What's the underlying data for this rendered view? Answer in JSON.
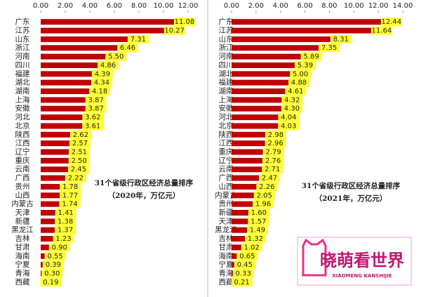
{
  "chart_data": [
    {
      "type": "bar",
      "orientation": "horizontal",
      "title": "31个省级行政区经济总量排序",
      "subtitle": "（2020年，万亿元）",
      "categories": [
        "广东",
        "江苏",
        "山东",
        "浙江",
        "河南",
        "四川",
        "福建",
        "湖北",
        "湖南",
        "上海",
        "安徽",
        "河北",
        "北京",
        "陕西",
        "江西",
        "辽宁",
        "重庆",
        "云南",
        "广西",
        "贵州",
        "山西",
        "内蒙古",
        "天津",
        "新疆",
        "黑龙江",
        "吉林",
        "甘肃",
        "海南",
        "宁夏",
        "青海",
        "西藏"
      ],
      "values": [
        11.08,
        10.27,
        7.31,
        6.46,
        5.5,
        4.86,
        4.39,
        4.34,
        4.18,
        3.87,
        3.87,
        3.62,
        3.61,
        2.62,
        2.57,
        2.51,
        2.5,
        2.45,
        2.22,
        1.78,
        1.77,
        1.74,
        1.41,
        1.38,
        1.37,
        1.23,
        0.9,
        0.55,
        0.39,
        0.3,
        0.19
      ],
      "value_labels": [
        "11.08",
        "10.27",
        "7.31",
        "6.46",
        "5.50",
        "4.86",
        "4.39",
        "4.34",
        "4.18",
        "3.87",
        "3.87",
        "3.62",
        "3.61",
        "2.62",
        "2.57",
        "2.51",
        "2.50",
        "2.45",
        "2.22",
        "1.78",
        "1.77",
        "1.74",
        "1.41",
        "1.38",
        "1.37",
        "1.23",
        "0.90",
        "0.55",
        "0.39",
        "0.30",
        "0.19"
      ],
      "color": "#c00000",
      "label_color": "#ffff33",
      "xlim": [
        0,
        12
      ],
      "xticks": [
        {
          "value": 0,
          "label": "0.00"
        },
        {
          "value": 2,
          "label": "2.00"
        },
        {
          "value": 4,
          "label": "4.00"
        },
        {
          "value": 6,
          "label": "6.00"
        },
        {
          "value": 8,
          "label": "8.00"
        },
        {
          "value": 10,
          "label": "10.00"
        },
        {
          "value": 12,
          "label": "12.00"
        }
      ]
    },
    {
      "type": "bar",
      "orientation": "horizontal",
      "title": "31个省级行政区经济总量排序",
      "subtitle": "（2021年，万亿元）",
      "categories": [
        "广东",
        "江苏",
        "山东",
        "浙江",
        "河南",
        "四川",
        "湖北",
        "福建",
        "湖南",
        "上海",
        "安徽",
        "河北",
        "北京",
        "陕西",
        "江西",
        "重庆",
        "辽宁",
        "云南",
        "广西",
        "山西",
        "内蒙古",
        "贵州",
        "新疆",
        "天津",
        "黑龙江",
        "吉林",
        "甘肃",
        "海南",
        "宁夏",
        "青海",
        "西藏"
      ],
      "values": [
        12.44,
        11.64,
        8.31,
        7.35,
        5.89,
        5.39,
        5.0,
        4.88,
        4.61,
        4.32,
        4.3,
        4.04,
        4.03,
        2.98,
        2.96,
        2.79,
        2.76,
        2.71,
        2.47,
        2.26,
        2.05,
        1.96,
        1.6,
        1.57,
        1.49,
        1.32,
        1.02,
        0.65,
        0.45,
        0.33,
        0.21
      ],
      "value_labels": [
        "12.44",
        "11.64",
        "8.31",
        "7.35",
        "5.89",
        "5.39",
        "5.00",
        "4.88",
        "4.61",
        "4.32",
        "4.30",
        "4.04",
        "4.03",
        "2.98",
        "2.96",
        "2.79",
        "2.76",
        "2.71",
        "2.47",
        "2.26",
        "2.05",
        "1.96",
        "1.60",
        "1.57",
        "1.49",
        "1.32",
        "1.02",
        "0.65",
        "0.45",
        "0.33",
        "0.21"
      ],
      "color": "#c00000",
      "label_color": "#ffff33",
      "xlim": [
        0,
        14
      ],
      "xticks": [
        {
          "value": 0,
          "label": "0.00"
        },
        {
          "value": 2,
          "label": "2.00"
        },
        {
          "value": 4,
          "label": "4.00"
        },
        {
          "value": 6,
          "label": "6.00"
        },
        {
          "value": 8,
          "label": "8.00"
        },
        {
          "value": 10,
          "label": "10.00"
        },
        {
          "value": 12,
          "label": "12.00"
        },
        {
          "value": 14,
          "label": "14.00"
        }
      ]
    }
  ],
  "watermark": {
    "name": "晓萌看世界",
    "tagline": "XIAOMENG KANSHIJIE"
  }
}
